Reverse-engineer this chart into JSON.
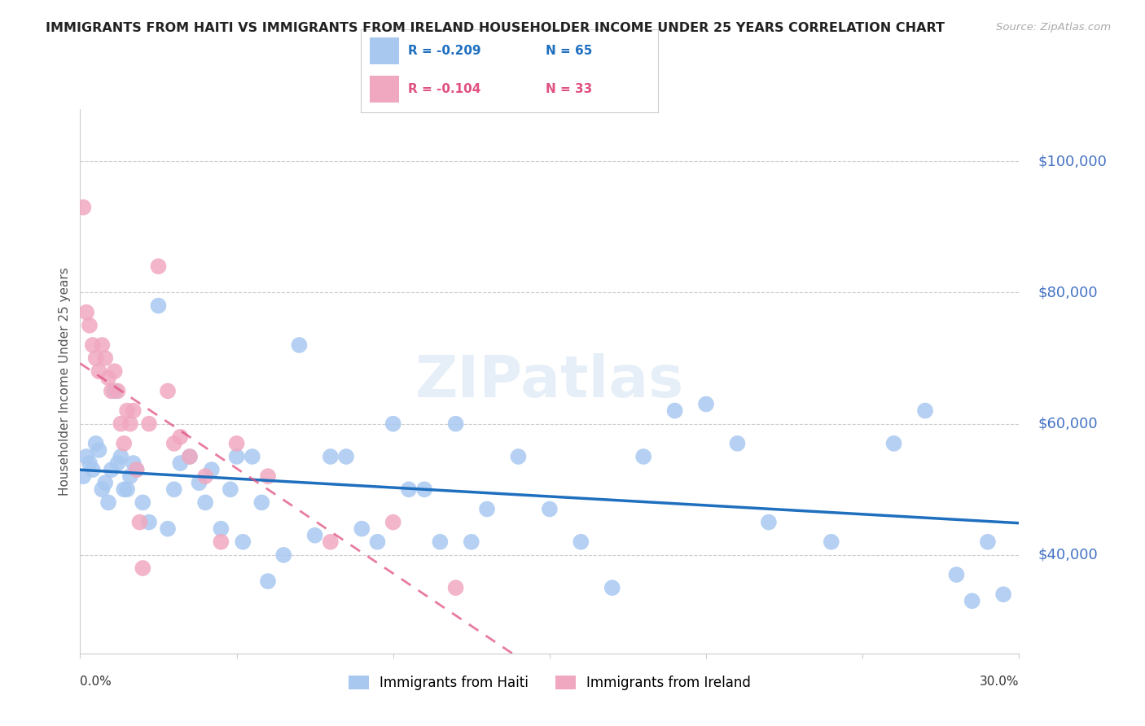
{
  "title": "IMMIGRANTS FROM HAITI VS IMMIGRANTS FROM IRELAND HOUSEHOLDER INCOME UNDER 25 YEARS CORRELATION CHART",
  "source": "Source: ZipAtlas.com",
  "ylabel": "Householder Income Under 25 years",
  "yaxis_values": [
    100000,
    80000,
    60000,
    40000
  ],
  "xlim": [
    0.0,
    0.3
  ],
  "ylim": [
    25000,
    108000
  ],
  "haiti_color": "#a8c8f0",
  "ireland_color": "#f0a8c0",
  "haiti_line_color": "#1f6fbf",
  "ireland_line_color": "#e05080",
  "legend_haiti_R": "R = -0.209",
  "legend_haiti_N": "N = 65",
  "legend_ireland_R": "R = -0.104",
  "legend_ireland_N": "N = 33",
  "watermark": "ZIPatlas",
  "haiti_x": [
    0.001,
    0.002,
    0.003,
    0.004,
    0.005,
    0.006,
    0.007,
    0.008,
    0.009,
    0.01,
    0.011,
    0.012,
    0.013,
    0.014,
    0.015,
    0.016,
    0.017,
    0.018,
    0.02,
    0.022,
    0.025,
    0.028,
    0.03,
    0.032,
    0.035,
    0.038,
    0.04,
    0.042,
    0.045,
    0.048,
    0.05,
    0.052,
    0.055,
    0.058,
    0.06,
    0.065,
    0.07,
    0.075,
    0.08,
    0.085,
    0.09,
    0.095,
    0.1,
    0.105,
    0.11,
    0.115,
    0.12,
    0.125,
    0.13,
    0.14,
    0.15,
    0.16,
    0.17,
    0.18,
    0.19,
    0.2,
    0.21,
    0.22,
    0.24,
    0.26,
    0.27,
    0.28,
    0.285,
    0.29,
    0.295
  ],
  "haiti_y": [
    52000,
    55000,
    54000,
    53000,
    57000,
    56000,
    50000,
    51000,
    48000,
    53000,
    65000,
    54000,
    55000,
    50000,
    50000,
    52000,
    54000,
    53000,
    48000,
    45000,
    78000,
    44000,
    50000,
    54000,
    55000,
    51000,
    48000,
    53000,
    44000,
    50000,
    55000,
    42000,
    55000,
    48000,
    36000,
    40000,
    72000,
    43000,
    55000,
    55000,
    44000,
    42000,
    60000,
    50000,
    50000,
    42000,
    60000,
    42000,
    47000,
    55000,
    47000,
    42000,
    35000,
    55000,
    62000,
    63000,
    57000,
    45000,
    42000,
    57000,
    62000,
    37000,
    33000,
    42000,
    34000
  ],
  "ireland_x": [
    0.001,
    0.002,
    0.003,
    0.004,
    0.005,
    0.006,
    0.007,
    0.008,
    0.009,
    0.01,
    0.011,
    0.012,
    0.013,
    0.014,
    0.015,
    0.016,
    0.017,
    0.018,
    0.019,
    0.02,
    0.022,
    0.025,
    0.028,
    0.03,
    0.032,
    0.035,
    0.04,
    0.045,
    0.05,
    0.06,
    0.08,
    0.1,
    0.12
  ],
  "ireland_y": [
    93000,
    77000,
    75000,
    72000,
    70000,
    68000,
    72000,
    70000,
    67000,
    65000,
    68000,
    65000,
    60000,
    57000,
    62000,
    60000,
    62000,
    53000,
    45000,
    38000,
    60000,
    84000,
    65000,
    57000,
    58000,
    55000,
    52000,
    42000,
    57000,
    52000,
    42000,
    45000,
    35000
  ]
}
